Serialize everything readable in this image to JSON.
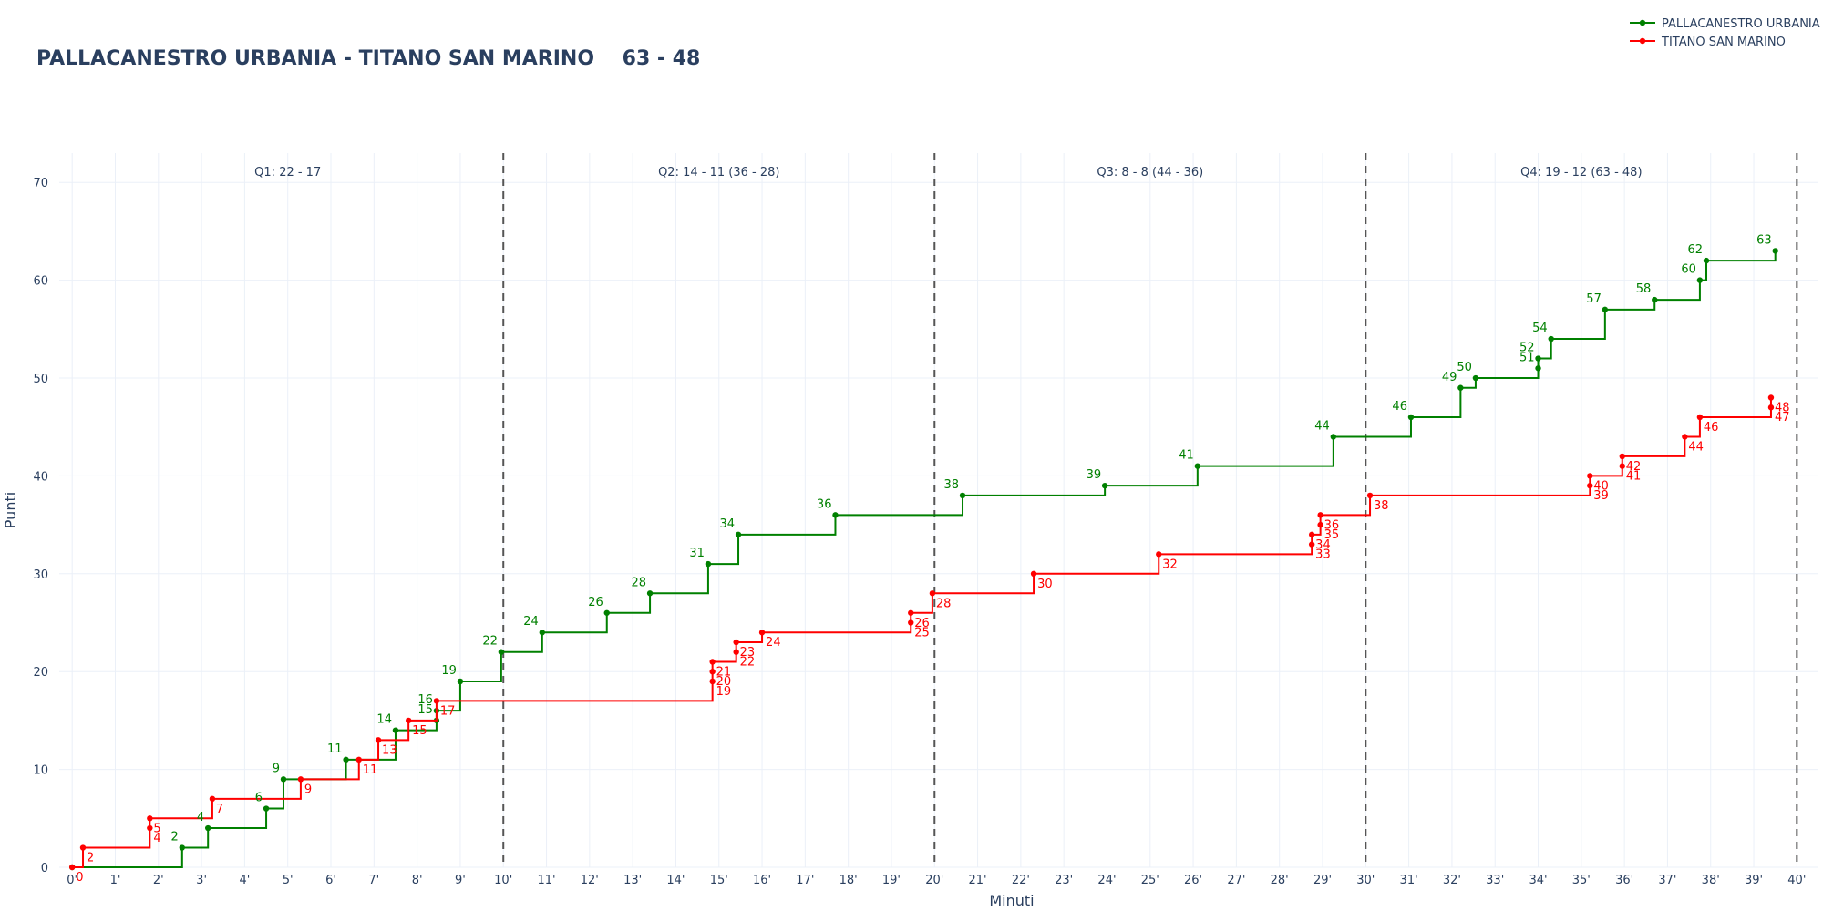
{
  "title": "PALLACANESTRO URBANIA - TITANO SAN MARINO    63 - 48",
  "chart_data": {
    "type": "line",
    "line_shape": "step-after",
    "xlabel": "Minuti",
    "ylabel": "Punti",
    "xlim": [
      -0.3,
      40.5
    ],
    "ylim": [
      0,
      73
    ],
    "x_ticks": [
      0,
      1,
      2,
      3,
      4,
      5,
      6,
      7,
      8,
      9,
      10,
      11,
      12,
      13,
      14,
      15,
      16,
      17,
      18,
      19,
      20,
      21,
      22,
      23,
      24,
      25,
      26,
      27,
      28,
      29,
      30,
      31,
      32,
      33,
      34,
      35,
      36,
      37,
      38,
      39,
      40
    ],
    "x_tick_labels": [
      "0'",
      "1'",
      "2'",
      "3'",
      "4'",
      "5'",
      "6'",
      "7'",
      "8'",
      "9'",
      "10'",
      "11'",
      "12'",
      "13'",
      "14'",
      "15'",
      "16'",
      "17'",
      "18'",
      "19'",
      "20'",
      "21'",
      "22'",
      "23'",
      "24'",
      "25'",
      "26'",
      "27'",
      "28'",
      "29'",
      "30'",
      "31'",
      "32'",
      "33'",
      "34'",
      "35'",
      "36'",
      "37'",
      "38'",
      "39'",
      "40'"
    ],
    "y_ticks": [
      0,
      10,
      20,
      30,
      40,
      50,
      60,
      70
    ],
    "y_tick_labels": [
      "0",
      "10",
      "20",
      "30",
      "40",
      "50",
      "60",
      "70"
    ],
    "grid": true,
    "legend_position": "top-right",
    "quarter_lines": [
      10,
      20,
      30,
      40
    ],
    "quarter_labels": [
      {
        "x": 5,
        "text": "Q1: 22 - 17"
      },
      {
        "x": 15,
        "text": "Q2: 14 - 11 (36 - 28)"
      },
      {
        "x": 25,
        "text": "Q3: 8 - 8 (44 - 36)"
      },
      {
        "x": 35,
        "text": "Q4: 19 - 12 (63 - 48)"
      }
    ],
    "series": [
      {
        "name": "PALLACANESTRO URBANIA",
        "color": "#008000",
        "label_side": "above-left",
        "points": [
          {
            "x": 0,
            "y": 0,
            "label": ""
          },
          {
            "x": 2.55,
            "y": 2,
            "label": "2"
          },
          {
            "x": 3.15,
            "y": 4,
            "label": "4"
          },
          {
            "x": 4.5,
            "y": 6,
            "label": "6"
          },
          {
            "x": 4.9,
            "y": 9,
            "label": "9"
          },
          {
            "x": 6.35,
            "y": 11,
            "label": "11"
          },
          {
            "x": 7.5,
            "y": 14,
            "label": "14"
          },
          {
            "x": 8.45,
            "y": 15,
            "label": "15"
          },
          {
            "x": 8.45,
            "y": 16,
            "label": "16"
          },
          {
            "x": 9,
            "y": 19,
            "label": "19"
          },
          {
            "x": 9.95,
            "y": 22,
            "label": "22"
          },
          {
            "x": 10.9,
            "y": 24,
            "label": "24"
          },
          {
            "x": 12.4,
            "y": 26,
            "label": "26"
          },
          {
            "x": 13.4,
            "y": 28,
            "label": "28"
          },
          {
            "x": 14.75,
            "y": 31,
            "label": "31"
          },
          {
            "x": 15.45,
            "y": 34,
            "label": "34"
          },
          {
            "x": 17.7,
            "y": 36,
            "label": "36"
          },
          {
            "x": 20.65,
            "y": 38,
            "label": "38"
          },
          {
            "x": 23.95,
            "y": 39,
            "label": "39"
          },
          {
            "x": 26.1,
            "y": 41,
            "label": "41"
          },
          {
            "x": 29.25,
            "y": 44,
            "label": "44"
          },
          {
            "x": 31.05,
            "y": 46,
            "label": "46"
          },
          {
            "x": 32.2,
            "y": 49,
            "label": "49"
          },
          {
            "x": 32.55,
            "y": 50,
            "label": "50"
          },
          {
            "x": 34,
            "y": 51,
            "label": "51"
          },
          {
            "x": 34,
            "y": 52,
            "label": "52"
          },
          {
            "x": 34.3,
            "y": 54,
            "label": "54"
          },
          {
            "x": 35.55,
            "y": 57,
            "label": "57"
          },
          {
            "x": 36.7,
            "y": 58,
            "label": "58"
          },
          {
            "x": 37.75,
            "y": 60,
            "label": "60"
          },
          {
            "x": 37.9,
            "y": 62,
            "label": "62"
          },
          {
            "x": 39.5,
            "y": 63,
            "label": "63"
          }
        ]
      },
      {
        "name": "TITANO SAN MARINO",
        "color": "#ff0000",
        "label_side": "below-right",
        "points": [
          {
            "x": 0,
            "y": 0,
            "label": "0"
          },
          {
            "x": 0.25,
            "y": 2,
            "label": "2"
          },
          {
            "x": 1.8,
            "y": 4,
            "label": "4"
          },
          {
            "x": 1.8,
            "y": 5,
            "label": "5"
          },
          {
            "x": 3.25,
            "y": 7,
            "label": "7"
          },
          {
            "x": 5.3,
            "y": 9,
            "label": "9"
          },
          {
            "x": 6.65,
            "y": 11,
            "label": "11"
          },
          {
            "x": 7.1,
            "y": 13,
            "label": "13"
          },
          {
            "x": 7.8,
            "y": 15,
            "label": "15"
          },
          {
            "x": 8.45,
            "y": 17,
            "label": "17"
          },
          {
            "x": 14.85,
            "y": 19,
            "label": "19"
          },
          {
            "x": 14.85,
            "y": 20,
            "label": "20"
          },
          {
            "x": 14.85,
            "y": 21,
            "label": "21"
          },
          {
            "x": 15.4,
            "y": 22,
            "label": "22"
          },
          {
            "x": 15.4,
            "y": 23,
            "label": "23"
          },
          {
            "x": 16,
            "y": 24,
            "label": "24"
          },
          {
            "x": 19.45,
            "y": 25,
            "label": "25"
          },
          {
            "x": 19.45,
            "y": 26,
            "label": "26"
          },
          {
            "x": 19.95,
            "y": 28,
            "label": "28"
          },
          {
            "x": 22.3,
            "y": 30,
            "label": "30"
          },
          {
            "x": 25.2,
            "y": 32,
            "label": "32"
          },
          {
            "x": 28.75,
            "y": 33,
            "label": "33"
          },
          {
            "x": 28.75,
            "y": 34,
            "label": "34"
          },
          {
            "x": 28.95,
            "y": 35,
            "label": "35"
          },
          {
            "x": 28.95,
            "y": 36,
            "label": "36"
          },
          {
            "x": 30.1,
            "y": 38,
            "label": "38"
          },
          {
            "x": 35.2,
            "y": 39,
            "label": "39"
          },
          {
            "x": 35.2,
            "y": 40,
            "label": "40"
          },
          {
            "x": 35.95,
            "y": 41,
            "label": "41"
          },
          {
            "x": 35.95,
            "y": 42,
            "label": "42"
          },
          {
            "x": 37.4,
            "y": 44,
            "label": "44"
          },
          {
            "x": 37.75,
            "y": 46,
            "label": "46"
          },
          {
            "x": 39.4,
            "y": 47,
            "label": "47"
          },
          {
            "x": 39.4,
            "y": 48,
            "label": "48"
          }
        ]
      }
    ]
  }
}
